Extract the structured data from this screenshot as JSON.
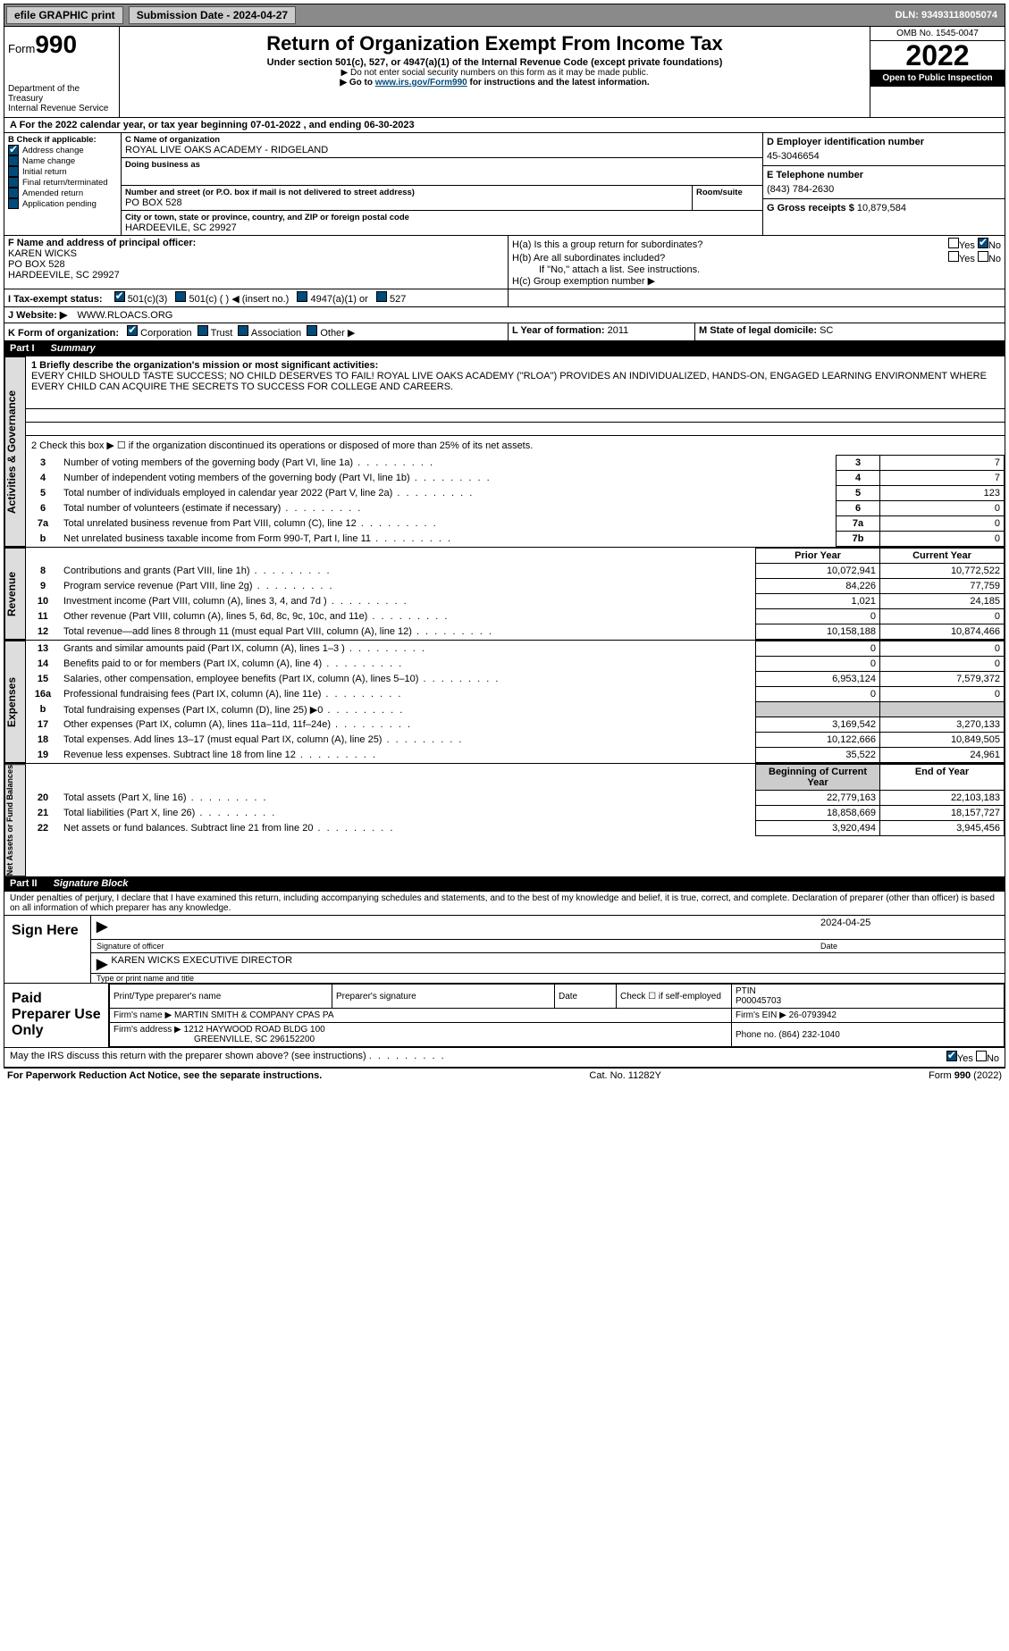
{
  "top_bar": {
    "efile_label": "efile GRAPHIC print",
    "submission_label": "Submission Date - 2024-04-27",
    "dln_label": "DLN: 93493118005074"
  },
  "header": {
    "form_prefix": "Form",
    "form_number": "990",
    "dept": "Department of the Treasury",
    "irs": "Internal Revenue Service",
    "title": "Return of Organization Exempt From Income Tax",
    "subtitle": "Under section 501(c), 527, or 4947(a)(1) of the Internal Revenue Code (except private foundations)",
    "note1": "▶ Do not enter social security numbers on this form as it may be made public.",
    "note2_pre": "▶ Go to ",
    "note2_link": "www.irs.gov/Form990",
    "note2_post": " for instructions and the latest information.",
    "omb": "OMB No. 1545-0047",
    "year": "2022",
    "open": "Open to Public Inspection"
  },
  "period": {
    "text": "A For the 2022 calendar year, or tax year beginning 07-01-2022    , and ending 06-30-2023"
  },
  "section_b": {
    "title": "B Check if applicable:",
    "items": [
      {
        "label": "Address change",
        "checked": true
      },
      {
        "label": "Name change",
        "checked": false
      },
      {
        "label": "Initial return",
        "checked": false
      },
      {
        "label": "Final return/terminated",
        "checked": false
      },
      {
        "label": "Amended return",
        "checked": false
      },
      {
        "label": "Application pending",
        "checked": false
      }
    ]
  },
  "section_c": {
    "name_label": "C Name of organization",
    "name": "ROYAL LIVE OAKS ACADEMY - RIDGELAND",
    "dba_label": "Doing business as",
    "dba": "",
    "street_label": "Number and street (or P.O. box if mail is not delivered to street address)",
    "room_label": "Room/suite",
    "street": "PO BOX 528",
    "city_label": "City or town, state or province, country, and ZIP or foreign postal code",
    "city": "HARDEEVILE, SC  29927"
  },
  "section_d": {
    "label": "D Employer identification number",
    "value": "45-3046654"
  },
  "section_e": {
    "label": "E Telephone number",
    "value": "(843) 784-2630"
  },
  "section_g": {
    "label": "G Gross receipts $",
    "value": "10,879,584"
  },
  "section_f": {
    "label": "F Name and address of principal officer:",
    "name": "KAREN WICKS",
    "street": "PO BOX 528",
    "city": "HARDEEVILE, SC  29927"
  },
  "section_h": {
    "ha_label": "H(a)  Is this a group return for subordinates?",
    "ha_yes": false,
    "ha_no": true,
    "hb_label": "H(b)  Are all subordinates included?",
    "hb_note": "If \"No,\" attach a list. See instructions.",
    "hc_label": "H(c)  Group exemption number ▶"
  },
  "yes": "Yes",
  "no": "No",
  "section_i": {
    "label": "I  Tax-exempt status:",
    "opts": [
      "501(c)(3)",
      "501(c) (  ) ◀ (insert no.)",
      "4947(a)(1) or",
      "527"
    ],
    "checked_idx": 0
  },
  "section_j": {
    "label": "J  Website: ▶",
    "value": "WWW.RLOACS.ORG"
  },
  "section_k": {
    "label": "K Form of organization:",
    "opts": [
      "Corporation",
      "Trust",
      "Association",
      "Other ▶"
    ],
    "checked_idx": 0
  },
  "section_l": {
    "label": "L Year of formation:",
    "value": "2011"
  },
  "section_m": {
    "label": "M State of legal domicile:",
    "value": "SC"
  },
  "part1": {
    "label": "Part I",
    "title": "Summary",
    "q1_label": "1 Briefly describe the organization's mission or most significant activities:",
    "q1_text": "EVERY CHILD SHOULD TASTE SUCCESS; NO CHILD DESERVES TO FAIL! ROYAL LIVE OAKS ACADEMY (\"RLOA\") PROVIDES AN INDIVIDUALIZED, HANDS-ON, ENGAGED LEARNING ENVIRONMENT WHERE EVERY CHILD CAN ACQUIRE THE SECRETS TO SUCCESS FOR COLLEGE AND CAREERS.",
    "q2_label": "2   Check this box ▶ ☐  if the organization discontinued its operations or disposed of more than 25% of its net assets.",
    "governance_rows": [
      {
        "n": "3",
        "label": "Number of voting members of the governing body (Part VI, line 1a)",
        "box": "3",
        "val": "7"
      },
      {
        "n": "4",
        "label": "Number of independent voting members of the governing body (Part VI, line 1b)",
        "box": "4",
        "val": "7"
      },
      {
        "n": "5",
        "label": "Total number of individuals employed in calendar year 2022 (Part V, line 2a)",
        "box": "5",
        "val": "123"
      },
      {
        "n": "6",
        "label": "Total number of volunteers (estimate if necessary)",
        "box": "6",
        "val": "0"
      },
      {
        "n": "7a",
        "label": "Total unrelated business revenue from Part VIII, column (C), line 12",
        "box": "7a",
        "val": "0"
      },
      {
        "n": "b",
        "label": "Net unrelated business taxable income from Form 990-T, Part I, line 11",
        "box": "7b",
        "val": "0"
      }
    ],
    "prior_year_hdr": "Prior Year",
    "current_year_hdr": "Current Year",
    "revenue_rows": [
      {
        "n": "8",
        "label": "Contributions and grants (Part VIII, line 1h)",
        "py": "10,072,941",
        "cy": "10,772,522"
      },
      {
        "n": "9",
        "label": "Program service revenue (Part VIII, line 2g)",
        "py": "84,226",
        "cy": "77,759"
      },
      {
        "n": "10",
        "label": "Investment income (Part VIII, column (A), lines 3, 4, and 7d )",
        "py": "1,021",
        "cy": "24,185"
      },
      {
        "n": "11",
        "label": "Other revenue (Part VIII, column (A), lines 5, 6d, 8c, 9c, 10c, and 11e)",
        "py": "0",
        "cy": "0"
      },
      {
        "n": "12",
        "label": "Total revenue—add lines 8 through 11 (must equal Part VIII, column (A), line 12)",
        "py": "10,158,188",
        "cy": "10,874,466"
      }
    ],
    "expense_rows": [
      {
        "n": "13",
        "label": "Grants and similar amounts paid (Part IX, column (A), lines 1–3 )",
        "py": "0",
        "cy": "0"
      },
      {
        "n": "14",
        "label": "Benefits paid to or for members (Part IX, column (A), line 4)",
        "py": "0",
        "cy": "0"
      },
      {
        "n": "15",
        "label": "Salaries, other compensation, employee benefits (Part IX, column (A), lines 5–10)",
        "py": "6,953,124",
        "cy": "7,579,372"
      },
      {
        "n": "16a",
        "label": "Professional fundraising fees (Part IX, column (A), line 11e)",
        "py": "0",
        "cy": "0"
      },
      {
        "n": "b",
        "label": "Total fundraising expenses (Part IX, column (D), line 25) ▶0",
        "py": "",
        "cy": "",
        "gray": true
      },
      {
        "n": "17",
        "label": "Other expenses (Part IX, column (A), lines 11a–11d, 11f–24e)",
        "py": "3,169,542",
        "cy": "3,270,133"
      },
      {
        "n": "18",
        "label": "Total expenses. Add lines 13–17 (must equal Part IX, column (A), line 25)",
        "py": "10,122,666",
        "cy": "10,849,505"
      },
      {
        "n": "19",
        "label": "Revenue less expenses. Subtract line 18 from line 12",
        "py": "35,522",
        "cy": "24,961"
      }
    ],
    "begin_hdr": "Beginning of Current Year",
    "end_hdr": "End of Year",
    "net_rows": [
      {
        "n": "20",
        "label": "Total assets (Part X, line 16)",
        "py": "22,779,163",
        "cy": "22,103,183"
      },
      {
        "n": "21",
        "label": "Total liabilities (Part X, line 26)",
        "py": "18,858,669",
        "cy": "18,157,727"
      },
      {
        "n": "22",
        "label": "Net assets or fund balances. Subtract line 21 from line 20",
        "py": "3,920,494",
        "cy": "3,945,456"
      }
    ],
    "vert_labels": {
      "gov": "Activities & Governance",
      "rev": "Revenue",
      "exp": "Expenses",
      "net": "Net Assets or Fund Balances"
    }
  },
  "part2": {
    "label": "Part II",
    "title": "Signature Block",
    "penalties": "Under penalties of perjury, I declare that I have examined this return, including accompanying schedules and statements, and to the best of my knowledge and belief, it is true, correct, and complete. Declaration of preparer (other than officer) is based on all information of which preparer has any knowledge."
  },
  "sign_here": {
    "label": "Sign Here",
    "sig_officer": "Signature of officer",
    "date": "2024-04-25",
    "date_label": "Date",
    "name": "KAREN WICKS  EXECUTIVE DIRECTOR",
    "name_label": "Type or print name and title"
  },
  "paid_preparer": {
    "label": "Paid Preparer Use Only",
    "headers": [
      "Print/Type preparer's name",
      "Preparer's signature",
      "Date"
    ],
    "check_label": "Check ☐ if self-employed",
    "ptin_label": "PTIN",
    "ptin": "P00045703",
    "firm_name_label": "Firm's name    ▶",
    "firm_name": "MARTIN SMITH & COMPANY CPAS PA",
    "firm_ein_label": "Firm's EIN ▶",
    "firm_ein": "26-0793942",
    "firm_addr_label": "Firm's address ▶",
    "firm_addr1": "1212 HAYWOOD ROAD BLDG 100",
    "firm_addr2": "GREENVILLE, SC  296152200",
    "phone_label": "Phone no.",
    "phone": "(864) 232-1040"
  },
  "may_irs": {
    "text": "May the IRS discuss this return with the preparer shown above? (see instructions)",
    "yes_checked": true
  },
  "footer": {
    "left": "For Paperwork Reduction Act Notice, see the separate instructions.",
    "center": "Cat. No. 11282Y",
    "right": "Form 990 (2022)"
  }
}
